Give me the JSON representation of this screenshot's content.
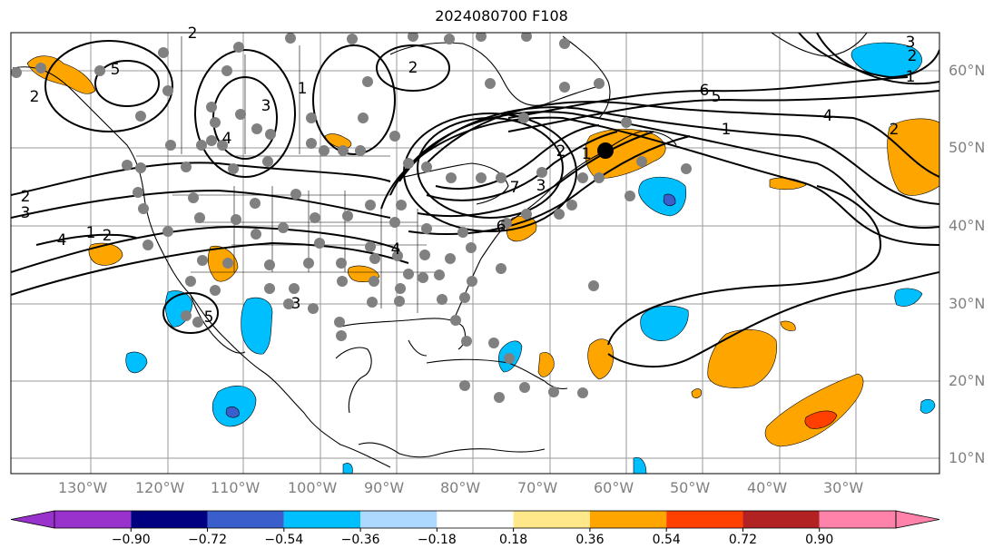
{
  "title": "2024080700 F108",
  "lon_labels": [
    "130°W",
    "120°W",
    "110°W",
    "100°W",
    "90°W",
    "80°W",
    "70°W",
    "60°W",
    "50°W",
    "40°W",
    "30°W"
  ],
  "lat_labels": [
    "60°N",
    "50°N",
    "40°N",
    "30°N",
    "20°N",
    "10°N"
  ],
  "contour_labels": [
    "2",
    "5",
    "2",
    "3",
    "4",
    "2",
    "1",
    "6",
    "5",
    "4",
    "1",
    "2",
    "3",
    "1",
    "2",
    "4",
    "3",
    "2",
    "1",
    "2",
    "3",
    "4",
    "5",
    "6",
    "7",
    "3",
    "2",
    "1"
  ],
  "colorbar": {
    "colors": [
      "#9932cc",
      "#8b2fc7",
      "#000080",
      "#3a5fcd",
      "#00bfff",
      "#add8ff",
      "#ffffff",
      "#ffe88a",
      "#ffa500",
      "#ff4000",
      "#b22222",
      "#ff82ab",
      "#ff82ab"
    ],
    "tick_labels": [
      "−0.90",
      "−0.72",
      "−0.54",
      "−0.36",
      "−0.18",
      "0.18",
      "0.36",
      "0.54",
      "0.72",
      "0.90"
    ]
  },
  "colors": {
    "orange": "#ffa500",
    "light_blue": "#00bfff",
    "blue": "#3a5fcd",
    "red": "#ff4000",
    "station": "#808080",
    "grid": "#808080"
  }
}
